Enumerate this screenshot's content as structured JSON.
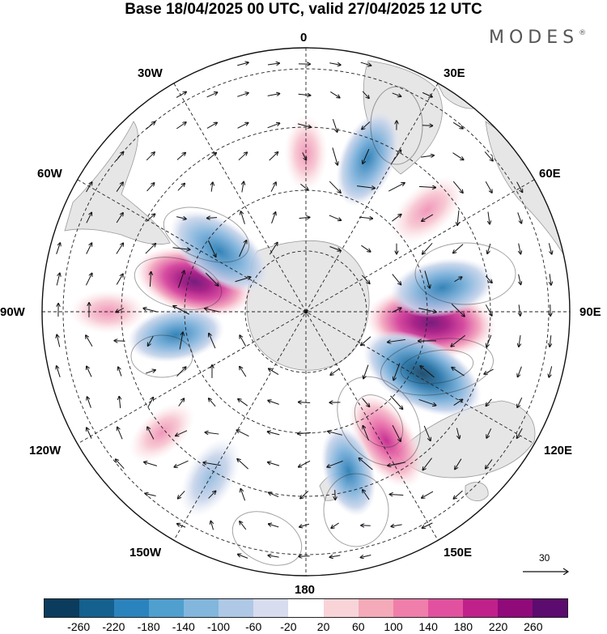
{
  "title": "Base 18/04/2025 00 UTC, valid 27/04/2025 12 UTC",
  "brand": {
    "name": "MODES",
    "mark": "®"
  },
  "lon_labels": {
    "l0": "0",
    "l30e": "30E",
    "l60e": "60E",
    "l90e": "90E",
    "l120e": "120E",
    "l150e": "150E",
    "l180": "180",
    "l150w": "150W",
    "l120w": "120W",
    "l90w": "90W",
    "l60w": "60W",
    "l30w": "30W"
  },
  "reference_vector": {
    "value": "30"
  },
  "colorbar": {
    "colors": [
      "#0b3c5d",
      "#14608f",
      "#2b83bd",
      "#4f9fcf",
      "#82b6dd",
      "#aec8e5",
      "#d7dcef",
      "#ffffff",
      "#f8d4d8",
      "#f4aab8",
      "#ef7eaa",
      "#e2519f",
      "#c0208a",
      "#900a7a",
      "#5c0b6e"
    ],
    "ticks": [
      "-260",
      "-220",
      "-180",
      "-140",
      "-100",
      "-60",
      "-20",
      "20",
      "60",
      "100",
      "140",
      "180",
      "220",
      "260"
    ]
  },
  "map_data": {
    "projection": "south-polar-stereographic",
    "field": "anomaly",
    "anomalies": [
      {
        "lon": 95,
        "lat": -52,
        "value": 270
      },
      {
        "lon": 80,
        "lat": -48,
        "value": -170
      },
      {
        "lon": 118,
        "lat": -50,
        "value": -260
      },
      {
        "lon": 148,
        "lat": -44,
        "value": 170
      },
      {
        "lon": 165,
        "lat": -40,
        "value": -120
      },
      {
        "lon": -75,
        "lat": -55,
        "value": 230
      },
      {
        "lon": -55,
        "lat": -58,
        "value": -200
      },
      {
        "lon": -100,
        "lat": -50,
        "value": -140
      },
      {
        "lon": 22,
        "lat": -40,
        "value": -150
      },
      {
        "lon": 50,
        "lat": -42,
        "value": 100
      },
      {
        "lon": -90,
        "lat": -30,
        "value": 60
      },
      {
        "lon": -130,
        "lat": -33,
        "value": 60
      },
      {
        "lon": -150,
        "lat": -32,
        "value": -100
      },
      {
        "lon": 0,
        "lat": -42,
        "value": 60
      }
    ]
  }
}
